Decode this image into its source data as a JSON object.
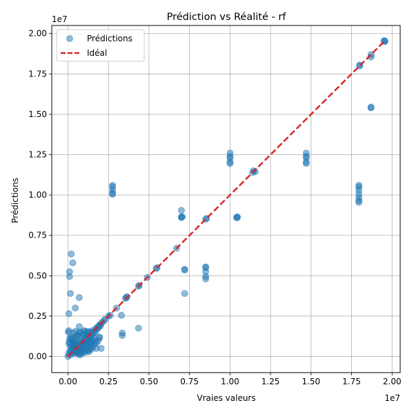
{
  "chart_data": {
    "type": "scatter",
    "title": "Prédiction vs Réalité - rf",
    "xlabel": "Vraies valeurs",
    "ylabel": "Prédictions",
    "x_offset_text": "1e7",
    "y_offset_text": "1e7",
    "xlim": [
      -1000000,
      20500000
    ],
    "ylim": [
      -1000000,
      20500000
    ],
    "x_ticks": [
      0,
      2500000,
      5000000,
      7500000,
      10000000,
      12500000,
      15000000,
      17500000,
      20000000
    ],
    "x_tick_labels": [
      "0.00",
      "0.25",
      "0.50",
      "0.75",
      "1.00",
      "1.25",
      "1.50",
      "1.75",
      "2.00"
    ],
    "y_ticks": [
      0,
      2500000,
      5000000,
      7500000,
      10000000,
      12500000,
      15000000,
      17500000,
      20000000
    ],
    "y_tick_labels": [
      "0.00",
      "0.25",
      "0.50",
      "0.75",
      "1.00",
      "1.25",
      "1.50",
      "1.75",
      "2.00"
    ],
    "grid": true,
    "legend_position": "top-left",
    "series": [
      {
        "name": "Prédictions",
        "kind": "scatter",
        "color": "#1f77b4",
        "points": [
          [
            0,
            0
          ],
          [
            50000,
            150000
          ],
          [
            100000,
            300000
          ],
          [
            150000,
            100000
          ],
          [
            200000,
            400000
          ],
          [
            250000,
            250000
          ],
          [
            300000,
            500000
          ],
          [
            350000,
            200000
          ],
          [
            400000,
            600000
          ],
          [
            450000,
            350000
          ],
          [
            500000,
            700000
          ],
          [
            550000,
            450000
          ],
          [
            600000,
            300000
          ],
          [
            650000,
            800000
          ],
          [
            700000,
            550000
          ],
          [
            750000,
            400000
          ],
          [
            800000,
            900000
          ],
          [
            850000,
            650000
          ],
          [
            900000,
            500000
          ],
          [
            950000,
            1000000
          ],
          [
            1000000,
            750000
          ],
          [
            1050000,
            600000
          ],
          [
            1100000,
            1100000
          ],
          [
            1150000,
            850000
          ],
          [
            1200000,
            700000
          ],
          [
            1250000,
            1200000
          ],
          [
            1300000,
            950000
          ],
          [
            1350000,
            800000
          ],
          [
            1400000,
            1300000
          ],
          [
            1450000,
            1050000
          ],
          [
            1500000,
            900000
          ],
          [
            1550000,
            1400000
          ],
          [
            1600000,
            1150000
          ],
          [
            1650000,
            1000000
          ],
          [
            1700000,
            1500000
          ],
          [
            200000,
            800000
          ],
          [
            300000,
            1000000
          ],
          [
            400000,
            1200000
          ],
          [
            500000,
            1100000
          ],
          [
            600000,
            1300000
          ],
          [
            700000,
            1500000
          ],
          [
            800000,
            1200000
          ],
          [
            900000,
            1400000
          ],
          [
            1000000,
            1600000
          ],
          [
            1100000,
            1300000
          ],
          [
            1200000,
            1500000
          ],
          [
            1300000,
            1100000
          ],
          [
            150000,
            600000
          ],
          [
            250000,
            700000
          ],
          [
            350000,
            900000
          ],
          [
            450000,
            300000
          ],
          [
            550000,
            200000
          ],
          [
            650000,
            150000
          ],
          [
            750000,
            100000
          ],
          [
            850000,
            200000
          ],
          [
            950000,
            300000
          ],
          [
            1050000,
            250000
          ],
          [
            1150000,
            400000
          ],
          [
            1250000,
            350000
          ],
          [
            1350000,
            500000
          ],
          [
            1450000,
            450000
          ],
          [
            1550000,
            600000
          ],
          [
            1650000,
            750000
          ],
          [
            1750000,
            850000
          ],
          [
            1850000,
            950000
          ],
          [
            1950000,
            1200000
          ],
          [
            100000,
            900000
          ],
          [
            200000,
            1100000
          ],
          [
            300000,
            500000
          ],
          [
            400000,
            800000
          ],
          [
            500000,
            400000
          ],
          [
            600000,
            900000
          ],
          [
            700000,
            600000
          ],
          [
            800000,
            300000
          ],
          [
            900000,
            800000
          ],
          [
            1000000,
            450000
          ],
          [
            1100000,
            900000
          ],
          [
            1200000,
            1000000
          ],
          [
            1300000,
            300000
          ],
          [
            1400000,
            700000
          ],
          [
            1500000,
            1600000
          ],
          [
            1600000,
            1500000
          ],
          [
            1700000,
            1700000
          ],
          [
            1800000,
            1800000
          ],
          [
            1900000,
            1900000
          ],
          [
            2000000,
            2000000
          ],
          [
            2100000,
            2100000
          ],
          [
            2200000,
            2200000
          ],
          [
            2300000,
            2300000
          ],
          [
            2500000,
            2500000
          ],
          [
            2600000,
            2550000
          ],
          [
            1800000,
            1700000
          ],
          [
            1900000,
            1800000
          ],
          [
            1750000,
            500000
          ],
          [
            2050000,
            500000
          ],
          [
            1950000,
            1150000
          ],
          [
            1100000,
            1200000
          ],
          [
            1050000,
            1550000
          ],
          [
            1250000,
            1550000
          ],
          [
            750000,
            1500000
          ],
          [
            650000,
            1300000
          ],
          [
            350000,
            1450000
          ],
          [
            200000,
            1200000
          ],
          [
            100000,
            1100000
          ],
          [
            50000,
            800000
          ],
          [
            20000,
            1500000
          ],
          [
            50000,
            1600000
          ],
          [
            450000,
            1550000
          ],
          [
            700000,
            1850000
          ],
          [
            450000,
            3000000
          ],
          [
            300000,
            5800000
          ],
          [
            200000,
            6350000
          ],
          [
            100000,
            5250000
          ],
          [
            100000,
            4950000
          ],
          [
            50000,
            2650000
          ],
          [
            150000,
            3900000
          ],
          [
            700000,
            3650000
          ],
          [
            3000000,
            3000000
          ],
          [
            3300000,
            2550000
          ],
          [
            3350000,
            1450000
          ],
          [
            3350000,
            1300000
          ],
          [
            4350000,
            1750000
          ],
          [
            3550000,
            3600000
          ],
          [
            3600000,
            3650000
          ],
          [
            3650000,
            3700000
          ],
          [
            4350000,
            4350000
          ],
          [
            4400000,
            4400000
          ],
          [
            4900000,
            4900000
          ],
          [
            5500000,
            5500000
          ],
          [
            5450000,
            5450000
          ],
          [
            6700000,
            6700000
          ],
          [
            7000000,
            9050000
          ],
          [
            7000000,
            8650000
          ],
          [
            7000000,
            8600000
          ],
          [
            7050000,
            8650000
          ],
          [
            7200000,
            5350000
          ],
          [
            7200000,
            5400000
          ],
          [
            7200000,
            3900000
          ],
          [
            8500000,
            8500000
          ],
          [
            8550000,
            8550000
          ],
          [
            8500000,
            5550000
          ],
          [
            8500000,
            5500000
          ],
          [
            8500000,
            5250000
          ],
          [
            8500000,
            4950000
          ],
          [
            8500000,
            4800000
          ],
          [
            10000000,
            12600000
          ],
          [
            10000000,
            12400000
          ],
          [
            10000000,
            12300000
          ],
          [
            10000000,
            12050000
          ],
          [
            10000000,
            11950000
          ],
          [
            10450000,
            8650000
          ],
          [
            10450000,
            8600000
          ],
          [
            10400000,
            8600000
          ],
          [
            11400000,
            11400000
          ],
          [
            11450000,
            11500000
          ],
          [
            11550000,
            11450000
          ],
          [
            14700000,
            12600000
          ],
          [
            14700000,
            12400000
          ],
          [
            14700000,
            12300000
          ],
          [
            14700000,
            12050000
          ],
          [
            14700000,
            11950000
          ],
          [
            17950000,
            10600000
          ],
          [
            17950000,
            10500000
          ],
          [
            17950000,
            10300000
          ],
          [
            17950000,
            10050000
          ],
          [
            17950000,
            9850000
          ],
          [
            17950000,
            9650000
          ],
          [
            17950000,
            9550000
          ],
          [
            18000000,
            18050000
          ],
          [
            18000000,
            18000000
          ],
          [
            18700000,
            18700000
          ],
          [
            18700000,
            18550000
          ],
          [
            18700000,
            15450000
          ],
          [
            18700000,
            15400000
          ],
          [
            19550000,
            19500000
          ],
          [
            19500000,
            19550000
          ],
          [
            19550000,
            19550000
          ],
          [
            2750000,
            10600000
          ],
          [
            2750000,
            10500000
          ],
          [
            2750000,
            10300000
          ],
          [
            2750000,
            10100000
          ],
          [
            2750000,
            10050000
          ],
          [
            1000000,
            1000000
          ],
          [
            600000,
            700000
          ],
          [
            800000,
            700000
          ],
          [
            1300000,
            1300000
          ],
          [
            1400000,
            1500000
          ],
          [
            2000000,
            1900000
          ]
        ]
      },
      {
        "name": "Idéal",
        "kind": "line",
        "color": "#d62728",
        "dash": "dashed",
        "x": [
          0,
          19550000
        ],
        "y": [
          0,
          19550000
        ]
      }
    ]
  }
}
